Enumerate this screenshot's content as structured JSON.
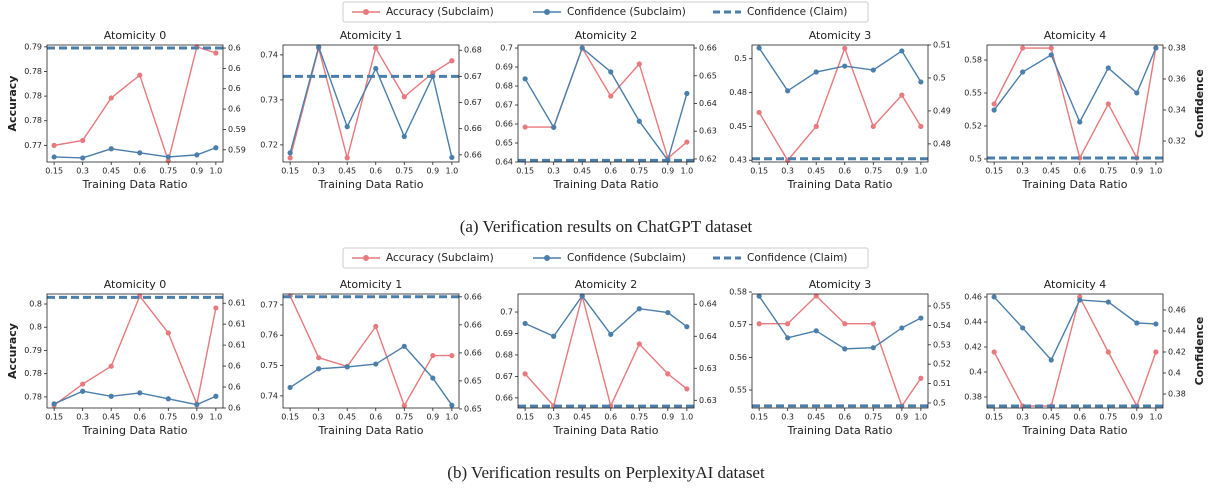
{
  "captions": [
    "(a) Verification results on ChatGPT dataset",
    "(b) Verification results on PerplexityAI dataset"
  ],
  "chart_data": [
    {
      "type": "line",
      "title": "Atomicity 0",
      "xlabel": "Training Data Ratio",
      "ylabel": "Accuracy",
      "x": [
        0.15,
        0.3,
        0.45,
        0.6,
        0.75,
        0.9,
        1.0
      ],
      "xlim": [
        0.1125,
        1.0375
      ],
      "xticks": [
        0.15,
        0.3,
        0.45,
        0.6,
        0.75,
        0.9,
        {
          "value": 1.0,
          "label": "1.0"
        }
      ],
      "ylim": [
        0.7693,
        0.7883
      ],
      "yticks": [
        {
          "value": 0.772,
          "label": "0.77"
        },
        {
          "value": 0.776,
          "label": "0.78"
        },
        {
          "value": 0.78,
          "label": "0.78"
        },
        {
          "value": 0.784,
          "label": "0.78"
        },
        {
          "value": 0.788,
          "label": "0.79"
        }
      ],
      "y2lim": [
        0.5908,
        0.6023
      ],
      "y2ticks": [
        {
          "value": 0.592,
          "label": "0.59"
        },
        {
          "value": 0.594,
          "label": "0.59"
        },
        {
          "value": 0.596,
          "label": "0.6"
        },
        {
          "value": 0.598,
          "label": "0.6"
        },
        {
          "value": 0.6,
          "label": "0.6"
        },
        {
          "value": 0.602,
          "label": "0.6"
        }
      ],
      "series": [
        {
          "name": "Accuracy (Subclaim)",
          "color": "#e8797d",
          "values": [
            0.772,
            0.7728,
            0.7797,
            0.7834,
            0.7695,
            0.788,
            0.787
          ]
        },
        {
          "name": "Confidence (Subclaim)",
          "color": "#4a7eab",
          "axis": "y2",
          "values": [
            0.5913,
            0.5912,
            0.5921,
            0.5917,
            0.5913,
            0.5915,
            0.5922
          ]
        },
        {
          "name": "Confidence (Claim)",
          "color": "#4a7eab",
          "axis": "y2",
          "style": "dashed",
          "value": 0.602
        }
      ]
    },
    {
      "type": "line",
      "title": "Atomicity 1",
      "xlabel": "Training Data Ratio",
      "x": [
        0.15,
        0.3,
        0.45,
        0.6,
        0.75,
        0.9,
        1.0
      ],
      "xlim": [
        0.1125,
        1.0375
      ],
      "xticks": [
        0.15,
        0.3,
        0.45,
        0.6,
        0.75,
        0.9,
        {
          "value": 1.0,
          "label": "1.0"
        }
      ],
      "ylim": [
        0.7162,
        0.7422
      ],
      "yticks": [
        0.72,
        0.73,
        0.74
      ],
      "y2lim": [
        0.6589,
        0.6768
      ],
      "y2ticks": [
        {
          "value": 0.66,
          "label": "0.66"
        },
        {
          "value": 0.664,
          "label": "0.66"
        },
        {
          "value": 0.668,
          "label": "0.67"
        },
        {
          "value": 0.672,
          "label": "0.67"
        },
        {
          "value": 0.676,
          "label": "0.68"
        }
      ],
      "series": [
        {
          "name": "Accuracy (Subclaim)",
          "color": "#e8797d",
          "values": [
            0.7171,
            0.7415,
            0.7171,
            0.7415,
            0.7307,
            0.736,
            0.7387
          ]
        },
        {
          "name": "Confidence (Subclaim)",
          "color": "#4a7eab",
          "axis": "y2",
          "values": [
            0.6603,
            0.6765,
            0.6643,
            0.6732,
            0.6628,
            0.672,
            0.6596
          ]
        },
        {
          "name": "Confidence (Claim)",
          "color": "#4a7eab",
          "axis": "y2",
          "style": "dashed",
          "value": 0.672
        }
      ]
    },
    {
      "type": "line",
      "title": "Atomicity 2",
      "xlabel": "Training Data Ratio",
      "x": [
        0.15,
        0.3,
        0.45,
        0.6,
        0.75,
        0.9,
        1.0
      ],
      "xlim": [
        0.1125,
        1.0375
      ],
      "xticks": [
        0.15,
        0.3,
        0.45,
        0.6,
        0.75,
        0.9,
        {
          "value": 1.0,
          "label": "1.0"
        }
      ],
      "ylim": [
        0.64,
        0.7016
      ],
      "yticks": [
        0.64,
        0.65,
        0.66,
        0.67,
        0.68,
        0.69,
        0.7
      ],
      "y2lim": [
        0.6189,
        0.6611
      ],
      "y2ticks": [
        0.62,
        0.63,
        0.64,
        0.65,
        0.66
      ],
      "series": [
        {
          "name": "Accuracy (Subclaim)",
          "color": "#e8797d",
          "values": [
            0.6584,
            0.6584,
            0.7,
            0.6747,
            0.6916,
            0.642,
            0.6505
          ]
        },
        {
          "name": "Confidence (Subclaim)",
          "color": "#4a7eab",
          "axis": "y2",
          "values": [
            0.6489,
            0.6314,
            0.66,
            0.6514,
            0.6336,
            0.6196,
            0.6436
          ]
        },
        {
          "name": "Confidence (Claim)",
          "color": "#4a7eab",
          "axis": "y2",
          "style": "dashed",
          "value": 0.6195
        }
      ]
    },
    {
      "type": "line",
      "title": "Atomicity 3",
      "xlabel": "Training Data Ratio",
      "x": [
        0.15,
        0.3,
        0.45,
        0.6,
        0.75,
        0.9,
        1.0
      ],
      "xlim": [
        0.1125,
        1.0375
      ],
      "xticks": [
        0.15,
        0.3,
        0.45,
        0.6,
        0.75,
        0.9,
        {
          "value": 1.0,
          "label": "1.0"
        }
      ],
      "ylim": [
        0.4237,
        0.5101
      ],
      "yticks": [
        {
          "value": 0.425,
          "label": "0.43"
        },
        0.45,
        {
          "value": 0.475,
          "label": "0.48"
        },
        {
          "value": 0.5,
          "label": "0.5"
        }
      ],
      "y2lim": [
        0.4745,
        0.51
      ],
      "y2ticks": [
        0.48,
        0.49,
        {
          "value": 0.5,
          "label": "0.5"
        },
        0.51
      ],
      "series": [
        {
          "name": "Accuracy (Subclaim)",
          "color": "#e8797d",
          "values": [
            0.4603,
            0.4249,
            0.45,
            0.5076,
            0.45,
            0.4731,
            0.45
          ]
        },
        {
          "name": "Confidence (Subclaim)",
          "color": "#4a7eab",
          "axis": "y2",
          "values": [
            0.5091,
            0.4961,
            0.5018,
            0.5036,
            0.5024,
            0.5082,
            0.4988
          ]
        },
        {
          "name": "Confidence (Claim)",
          "color": "#4a7eab",
          "axis": "y2",
          "style": "dashed",
          "value": 0.4755
        }
      ]
    },
    {
      "type": "line",
      "title": "Atomicity 4",
      "xlabel": "Training Data Ratio",
      "y2label": "Confidence",
      "x": [
        0.15,
        0.3,
        0.45,
        0.6,
        0.75,
        0.9,
        1.0
      ],
      "xlim": [
        0.1125,
        1.0375
      ],
      "xticks": [
        0.15,
        0.3,
        0.45,
        0.6,
        0.75,
        0.9,
        {
          "value": 1.0,
          "label": "1.0"
        }
      ],
      "ylim": [
        0.4977,
        0.5864
      ],
      "yticks": [
        {
          "value": 0.5,
          "label": "0.5"
        },
        {
          "value": 0.525,
          "label": "0.52"
        },
        0.55,
        {
          "value": 0.575,
          "label": "0.58"
        }
      ],
      "y2lim": [
        0.3065,
        0.3819
      ],
      "y2ticks": [
        0.32,
        0.34,
        0.36,
        0.38
      ],
      "series": [
        {
          "name": "Accuracy (Subclaim)",
          "color": "#e8797d",
          "values": [
            0.5417,
            0.5841,
            0.5841,
            0.5008,
            0.5417,
            0.5008,
            0.5841
          ]
        },
        {
          "name": "Confidence (Subclaim)",
          "color": "#4a7eab",
          "axis": "y2",
          "values": [
            0.34,
            0.3645,
            0.3755,
            0.3323,
            0.3671,
            0.351,
            0.38
          ]
        },
        {
          "name": "Confidence (Claim)",
          "color": "#4a7eab",
          "axis": "y2",
          "style": "dashed",
          "value": 0.3091
        }
      ]
    },
    {
      "type": "line",
      "title": "Atomicity 0",
      "xlabel": "Training Data Ratio",
      "ylabel": "Accuracy",
      "x": [
        0.15,
        0.3,
        0.45,
        0.6,
        0.75,
        0.9,
        1.0
      ],
      "xlim": [
        0.1125,
        1.0375
      ],
      "xticks": [
        0.15,
        0.3,
        0.45,
        0.6,
        0.75,
        0.9,
        {
          "value": 1.0,
          "label": "1.0"
        }
      ],
      "ylim": [
        0.7729,
        0.8048
      ],
      "yticks": [
        {
          "value": 0.776,
          "label": "0.78"
        },
        {
          "value": 0.7825,
          "label": "0.78"
        },
        {
          "value": 0.789,
          "label": "0.79"
        },
        {
          "value": 0.7955,
          "label": "0.8"
        },
        {
          "value": 0.802,
          "label": "0.8"
        }
      ],
      "y2lim": [
        0.5995,
        0.6131
      ],
      "y2ticks": [
        {
          "value": 0.5995,
          "label": "0.6"
        },
        {
          "value": 0.602,
          "label": "0.6"
        },
        {
          "value": 0.6045,
          "label": "0.6"
        },
        {
          "value": 0.607,
          "label": "0.61"
        },
        {
          "value": 0.6095,
          "label": "0.61"
        },
        {
          "value": 0.612,
          "label": "0.61"
        }
      ],
      "series": [
        {
          "name": "Accuracy (Subclaim)",
          "color": "#e8797d",
          "values": [
            0.7737,
            0.7796,
            0.7846,
            0.8042,
            0.7939,
            0.774,
            0.8009
          ]
        },
        {
          "name": "Confidence (Subclaim)",
          "color": "#4a7eab",
          "axis": "y2",
          "values": [
            0.6,
            0.6015,
            0.6009,
            0.6013,
            0.6006,
            0.5999,
            0.6009
          ]
        },
        {
          "name": "Confidence (Claim)",
          "color": "#4a7eab",
          "axis": "y2",
          "style": "dashed",
          "value": 0.6127
        }
      ]
    },
    {
      "type": "line",
      "title": "Atomicity 1",
      "xlabel": "Training Data Ratio",
      "x": [
        0.15,
        0.3,
        0.45,
        0.6,
        0.75,
        0.9,
        1.0
      ],
      "xlim": [
        0.1125,
        1.0375
      ],
      "xticks": [
        0.15,
        0.3,
        0.45,
        0.6,
        0.75,
        0.9,
        {
          "value": 1.0,
          "label": "1.0"
        }
      ],
      "ylim": [
        0.736,
        0.7736
      ],
      "yticks": [
        0.74,
        0.75,
        0.76,
        0.77
      ],
      "y2lim": [
        0.6501,
        0.6623
      ],
      "y2ticks": [
        {
          "value": 0.65,
          "label": "0.65"
        },
        {
          "value": 0.653,
          "label": "0.65"
        },
        {
          "value": 0.656,
          "label": "0.66"
        },
        {
          "value": 0.659,
          "label": "0.66"
        },
        {
          "value": 0.662,
          "label": "0.66"
        }
      ],
      "series": [
        {
          "name": "Accuracy (Subclaim)",
          "color": "#e8797d",
          "values": [
            0.773,
            0.7526,
            0.7497,
            0.7629,
            0.7368,
            0.7533,
            0.7533
          ]
        },
        {
          "name": "Confidence (Subclaim)",
          "color": "#4a7eab",
          "axis": "y2",
          "values": [
            0.6523,
            0.6543,
            0.6545,
            0.6548,
            0.6567,
            0.6533,
            0.6504
          ]
        },
        {
          "name": "Confidence (Claim)",
          "color": "#4a7eab",
          "axis": "y2",
          "style": "dashed",
          "value": 0.662
        }
      ]
    },
    {
      "type": "line",
      "title": "Atomicity 2",
      "xlabel": "Training Data Ratio",
      "x": [
        0.15,
        0.3,
        0.45,
        0.6,
        0.75,
        0.9,
        1.0
      ],
      "xlim": [
        0.1125,
        1.0375
      ],
      "xticks": [
        0.15,
        0.3,
        0.45,
        0.6,
        0.75,
        0.9,
        {
          "value": 1.0,
          "label": "1.0"
        }
      ],
      "ylim": [
        0.6553,
        0.7084
      ],
      "yticks": [
        0.66,
        0.67,
        0.68,
        0.69,
        {
          "value": 0.7,
          "label": "0.7"
        }
      ],
      "y2lim": [
        0.6258,
        0.6436
      ],
      "y2ticks": [
        {
          "value": 0.627,
          "label": "0.63"
        },
        {
          "value": 0.632,
          "label": "0.63"
        },
        {
          "value": 0.637,
          "label": "0.64"
        },
        {
          "value": 0.642,
          "label": "0.64"
        }
      ],
      "series": [
        {
          "name": "Accuracy (Subclaim)",
          "color": "#e8797d",
          "values": [
            0.6712,
            0.6563,
            0.7074,
            0.6563,
            0.6851,
            0.6712,
            0.6642
          ]
        },
        {
          "name": "Confidence (Subclaim)",
          "color": "#4a7eab",
          "axis": "y2",
          "values": [
            0.639,
            0.637,
            0.6433,
            0.6373,
            0.6413,
            0.6407,
            0.6385
          ]
        },
        {
          "name": "Confidence (Claim)",
          "color": "#4a7eab",
          "axis": "y2",
          "style": "dashed",
          "value": 0.6261
        }
      ]
    },
    {
      "type": "line",
      "title": "Atomicity 3",
      "xlabel": "Training Data Ratio",
      "x": [
        0.15,
        0.3,
        0.45,
        0.6,
        0.75,
        0.9,
        1.0
      ],
      "xlim": [
        0.1125,
        1.0375
      ],
      "xticks": [
        0.15,
        0.3,
        0.45,
        0.6,
        0.75,
        0.9,
        {
          "value": 1.0,
          "label": "1.0"
        }
      ],
      "ylim": [
        0.5445,
        0.5794
      ],
      "yticks": [
        0.55,
        0.56,
        0.57,
        0.58
      ],
      "y2lim": [
        0.4974,
        0.5562
      ],
      "y2ticks": [
        {
          "value": 0.5,
          "label": "0.5"
        },
        0.51,
        0.52,
        0.53,
        0.54,
        0.55
      ],
      "series": [
        {
          "name": "Accuracy (Subclaim)",
          "color": "#e8797d",
          "values": [
            0.5703,
            0.5703,
            0.5788,
            0.5703,
            0.5703,
            0.5451,
            0.5536
          ]
        },
        {
          "name": "Confidence (Subclaim)",
          "color": "#4a7eab",
          "axis": "y2",
          "values": [
            0.5551,
            0.5336,
            0.5372,
            0.5279,
            0.5285,
            0.5387,
            0.5438
          ]
        },
        {
          "name": "Confidence (Claim)",
          "color": "#4a7eab",
          "axis": "y2",
          "style": "dashed",
          "value": 0.4985
        }
      ]
    },
    {
      "type": "line",
      "title": "Atomicity 4",
      "xlabel": "Training Data Ratio",
      "y2label": "Confidence",
      "x": [
        0.15,
        0.3,
        0.45,
        0.6,
        0.75,
        0.9,
        1.0
      ],
      "xlim": [
        0.1125,
        1.0375
      ],
      "xticks": [
        0.15,
        0.3,
        0.45,
        0.6,
        0.75,
        0.9,
        {
          "value": 1.0,
          "label": "1.0"
        }
      ],
      "ylim": [
        0.3712,
        0.4624
      ],
      "yticks": [
        0.38,
        {
          "value": 0.4,
          "label": "0.4"
        },
        0.42,
        0.44,
        0.46
      ],
      "y2lim": [
        0.3667,
        0.4752
      ],
      "y2ticks": [
        0.38,
        {
          "value": 0.4,
          "label": "0.4"
        },
        0.42,
        0.44,
        0.46
      ],
      "series": [
        {
          "name": "Accuracy (Subclaim)",
          "color": "#e8797d",
          "values": [
            0.416,
            0.3728,
            0.3728,
            0.46,
            0.416,
            0.3728,
            0.416
          ]
        },
        {
          "name": "Confidence (Subclaim)",
          "color": "#4a7eab",
          "axis": "y2",
          "values": [
            0.4724,
            0.4429,
            0.4124,
            0.4695,
            0.4676,
            0.4476,
            0.4467
          ]
        },
        {
          "name": "Confidence (Claim)",
          "color": "#4a7eab",
          "axis": "y2",
          "style": "dashed",
          "value": 0.3686
        }
      ]
    }
  ]
}
